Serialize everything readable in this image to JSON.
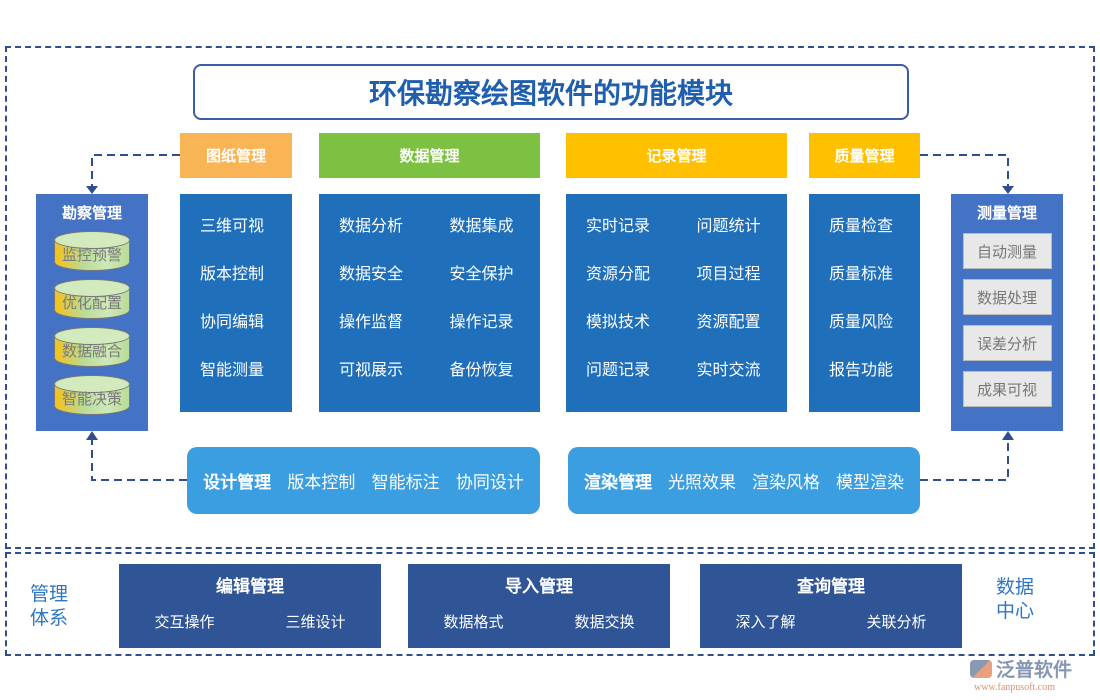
{
  "title": "环保勘察绘图软件的功能模块",
  "tabs": [
    {
      "label": "图纸管理",
      "color": "#f9b456",
      "items": [
        "三维可视",
        "版本控制",
        "协同编辑",
        "智能测量"
      ]
    },
    {
      "label": "数据管理",
      "color": "#7dc142",
      "items": [
        "数据分析",
        "数据集成",
        "数据安全",
        "安全保护",
        "操作监督",
        "操作记录",
        "可视展示",
        "备份恢复"
      ]
    },
    {
      "label": "记录管理",
      "color": "#ffc000",
      "items": [
        "实时记录",
        "问题统计",
        "资源分配",
        "项目过程",
        "模拟技术",
        "资源配置",
        "问题记录",
        "实时交流"
      ]
    },
    {
      "label": "质量管理",
      "color": "#ffc000",
      "items": [
        "质量检查",
        "质量标准",
        "质量风险",
        "报告功能"
      ]
    }
  ],
  "left": {
    "title": "勘察管理",
    "items": [
      "监控预警",
      "优化配置",
      "数据融合",
      "智能决策"
    ]
  },
  "right": {
    "title": "测量管理",
    "items": [
      "自动测量",
      "数据处理",
      "误差分析",
      "成果可视"
    ]
  },
  "pills": [
    {
      "title": "设计管理",
      "items": [
        "版本控制",
        "智能标注",
        "协同设计"
      ]
    },
    {
      "title": "渲染管理",
      "items": [
        "光照效果",
        "渲染风格",
        "模型渲染"
      ]
    }
  ],
  "bottom": {
    "left_label": "管理体系",
    "right_label": "数据中心",
    "boxes": [
      {
        "title": "编辑管理",
        "items": [
          "交互操作",
          "三维设计"
        ]
      },
      {
        "title": "导入管理",
        "items": [
          "数据格式",
          "数据交换"
        ]
      },
      {
        "title": "查询管理",
        "items": [
          "深入了解",
          "关联分析"
        ]
      }
    ]
  },
  "logo": {
    "name": "泛普软件",
    "url": "www.fanpusoft.com"
  }
}
